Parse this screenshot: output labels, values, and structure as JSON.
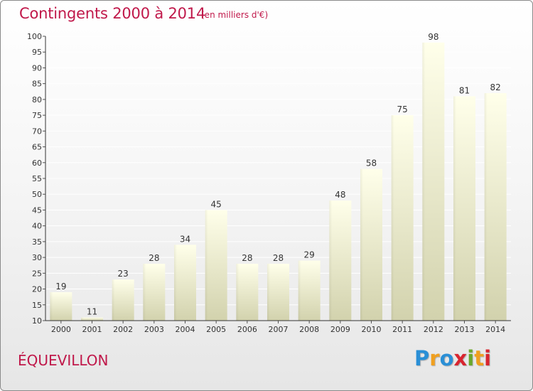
{
  "header": {
    "title": "Contingents 2000 à 2014",
    "subtitle": "(en milliers d'€)"
  },
  "footer": {
    "commune": "ÉQUEVILLON",
    "logo": {
      "letters": [
        "P",
        "r",
        "o",
        "x",
        "i",
        "t",
        "i"
      ],
      "colors": [
        "#2a8fd6",
        "#f0a020",
        "#2a8fd6",
        "#d8252f",
        "#6aa82c",
        "#f0a020",
        "#d8252f"
      ]
    }
  },
  "colors": {
    "accent": "#c0184a",
    "bar_top": "#ffffe8",
    "bar_bottom": "#d4d4b0",
    "grid": "#ffffff"
  },
  "chart_data": {
    "type": "bar",
    "title": "Contingents 2000 à 2014",
    "subtitle": "(en milliers d'€)",
    "categories": [
      "2000",
      "2001",
      "2002",
      "2003",
      "2004",
      "2005",
      "2006",
      "2007",
      "2008",
      "2009",
      "2010",
      "2011",
      "2012",
      "2013",
      "2014"
    ],
    "values": [
      19,
      11,
      23,
      28,
      34,
      45,
      28,
      28,
      29,
      48,
      58,
      75,
      98,
      81,
      82
    ],
    "ylim": [
      10,
      100
    ],
    "yticks": [
      10,
      15,
      20,
      25,
      30,
      35,
      40,
      45,
      50,
      55,
      60,
      65,
      70,
      75,
      80,
      85,
      90,
      95,
      100
    ],
    "grid": true,
    "data_labels": true,
    "xlabel": "",
    "ylabel": ""
  }
}
